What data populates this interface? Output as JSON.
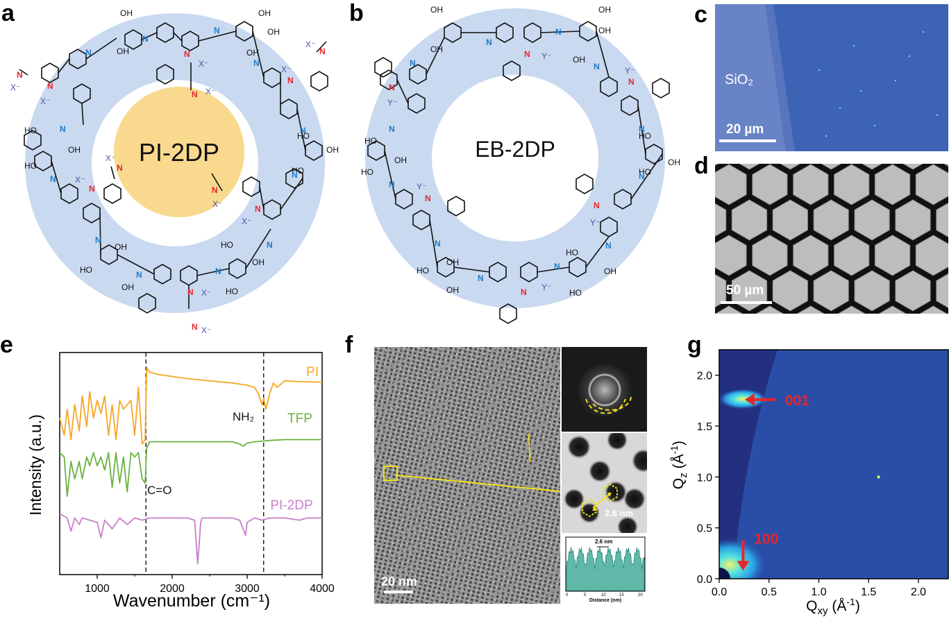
{
  "panels": {
    "a": {
      "letter": "a",
      "label": "PI-2DP",
      "ion_label": "X⁻"
    },
    "b": {
      "letter": "b",
      "label": "EB-2DP",
      "ion_label": "Y⁻"
    },
    "c": {
      "letter": "c",
      "material_label": "SiO₂",
      "scale_label": "20 µm"
    },
    "d": {
      "letter": "d",
      "scale_label": "50 µm"
    },
    "e": {
      "letter": "e"
    },
    "f": {
      "letter": "f",
      "scale_label": "20 nm",
      "pore_label": "2.6 nm",
      "profile_peak_label": "2.6 nm",
      "profile_xlabel": "Distance (nm)"
    },
    "g": {
      "letter": "g"
    }
  },
  "colors": {
    "ring_blue": "#c9d9ef",
    "yellow_disc": "#f8d98e",
    "pi_line": "#f5a623",
    "tfp_line": "#6ab23e",
    "pi2dp_line": "#c77fc8",
    "pi2dp_text": "#c77fc8",
    "arrow_red": "#e8262a",
    "nitrogen_blue": "#1f7ac6",
    "nitrogen_red": "#e8262a",
    "micro_blue": "#3d63b4",
    "giwaxs_bg": "#2a3f9b"
  },
  "chart_data": [
    {
      "id": "e",
      "type": "line",
      "title": "",
      "xlabel": "Wavenumber (cm⁻¹)",
      "ylabel": "Intensity (a.u.)",
      "xlim": [
        500,
        4000
      ],
      "xticks": [
        1000,
        2000,
        3000,
        4000
      ],
      "grid": false,
      "legend": "inline",
      "vlines": [
        1650,
        3220
      ],
      "annotations": [
        "C=O",
        "NH₂"
      ],
      "series": [
        {
          "name": "PI",
          "x": [
            500,
            560,
            600,
            650,
            700,
            760,
            800,
            860,
            900,
            950,
            1000,
            1050,
            1100,
            1150,
            1200,
            1250,
            1300,
            1350,
            1400,
            1450,
            1500,
            1550,
            1600,
            1640,
            1660,
            1700,
            1800,
            2000,
            2200,
            2500,
            2800,
            3000,
            3100,
            3150,
            3200,
            3220,
            3250,
            3300,
            3350,
            3400,
            3500,
            3700,
            4000
          ],
          "y": [
            2.0,
            1.6,
            2.2,
            1.5,
            2.3,
            1.7,
            2.5,
            1.8,
            2.6,
            2.0,
            2.4,
            2.1,
            2.5,
            1.6,
            2.3,
            1.5,
            2.4,
            2.2,
            2.3,
            2.4,
            1.6,
            2.7,
            1.4,
            1.5,
            3.15,
            3.05,
            3.0,
            2.95,
            2.9,
            2.85,
            2.8,
            2.75,
            2.7,
            2.55,
            2.3,
            2.45,
            2.2,
            2.55,
            2.8,
            2.7,
            2.85,
            2.83,
            2.82
          ]
        },
        {
          "name": "TFP",
          "x": [
            500,
            560,
            600,
            650,
            700,
            760,
            800,
            860,
            900,
            950,
            1000,
            1050,
            1100,
            1150,
            1200,
            1250,
            1300,
            1350,
            1400,
            1450,
            1500,
            1550,
            1600,
            1640,
            1660,
            1700,
            1800,
            2000,
            2200,
            2500,
            2800,
            2900,
            2950,
            3000,
            3100,
            3300,
            3500,
            3700,
            4000
          ],
          "y": [
            1.2,
            1.1,
            0.2,
            1.0,
            0.6,
            1.0,
            0.6,
            1.1,
            0.9,
            1.2,
            0.9,
            1.1,
            0.8,
            1.2,
            0.4,
            1.2,
            0.5,
            1.1,
            0.3,
            1.2,
            1.1,
            1.2,
            0.6,
            0.5,
            1.3,
            1.45,
            1.45,
            1.45,
            1.45,
            1.45,
            1.45,
            1.4,
            1.35,
            1.42,
            1.45,
            1.48,
            1.5,
            1.5,
            1.5
          ]
        },
        {
          "name": "PI-2DP",
          "x": [
            500,
            600,
            650,
            700,
            760,
            800,
            900,
            1000,
            1050,
            1100,
            1200,
            1300,
            1400,
            1500,
            1600,
            1700,
            1800,
            2000,
            2200,
            2300,
            2340,
            2360,
            2380,
            2400,
            2500,
            2800,
            2900,
            2980,
            3000,
            3100,
            3200,
            3300,
            3500,
            3700,
            3800,
            4000
          ],
          "y": [
            -0.2,
            -0.3,
            -0.6,
            -0.3,
            -0.45,
            -0.3,
            -0.35,
            -0.4,
            -0.75,
            -0.35,
            -0.55,
            -0.3,
            -0.45,
            -0.3,
            -0.35,
            -0.3,
            -0.3,
            -0.3,
            -0.3,
            -0.35,
            -1.35,
            -0.9,
            -0.4,
            -0.3,
            -0.3,
            -0.3,
            -0.35,
            -0.7,
            -0.4,
            -0.3,
            -0.35,
            -0.3,
            -0.3,
            -0.35,
            -0.3,
            -0.3
          ]
        }
      ]
    },
    {
      "id": "g",
      "type": "heatmap",
      "title": "",
      "xlabel": "Qxy (Å⁻¹)",
      "ylabel": "Qz (Å⁻¹)",
      "xlim": [
        0.0,
        2.3
      ],
      "ylim": [
        0.0,
        2.25
      ],
      "xticks": [
        0.0,
        0.5,
        1.0,
        1.5,
        2.0
      ],
      "yticks": [
        0.0,
        0.5,
        1.0,
        1.5,
        2.0
      ],
      "annotations": [
        {
          "text": "001",
          "qxy": 0.55,
          "qz": 1.76
        },
        {
          "text": "100",
          "qxy": 0.24,
          "qz": 0.38
        }
      ],
      "peaks": [
        {
          "name": "001",
          "qxy": 0.1,
          "qz": 1.76
        },
        {
          "name": "100",
          "qxy": 0.24,
          "qz": 0.02
        },
        {
          "name": "spot",
          "qxy": 1.6,
          "qz": 1.0
        }
      ]
    }
  ]
}
